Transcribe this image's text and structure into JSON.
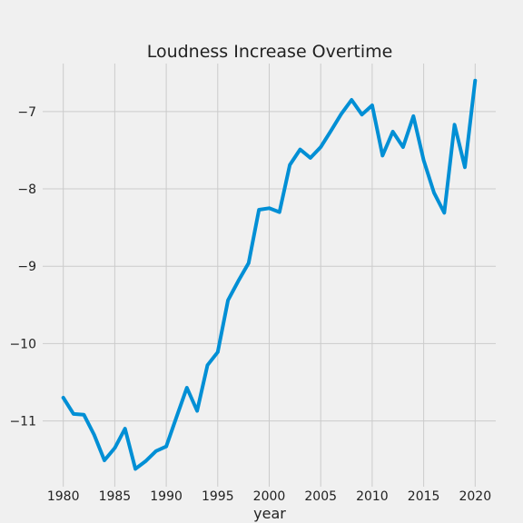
{
  "chart_data": {
    "type": "line",
    "title": "Loudness Increase Overtime",
    "xlabel": "year",
    "ylabel": "",
    "grid": true,
    "xlim": [
      1978,
      2022
    ],
    "ylim": [
      -11.85,
      -6.38
    ],
    "xticks": [
      1980,
      1985,
      1990,
      1995,
      2000,
      2005,
      2010,
      2015,
      2020
    ],
    "yticks": [
      -11,
      -10,
      -9,
      -8,
      -7
    ],
    "ytick_labels": [
      "−11",
      "−10",
      "−9",
      "−8",
      "−7"
    ],
    "colors": {
      "line": "#008fd5",
      "background": "#f0f0f0",
      "grid": "#cbcbcb"
    },
    "series": [
      {
        "x": [
          1980,
          1981,
          1982,
          1983,
          1984,
          1985,
          1986,
          1987,
          1988,
          1989,
          1990,
          1991,
          1992,
          1993,
          1994,
          1995,
          1996,
          1997,
          1998,
          1999,
          2000,
          2001,
          2002,
          2003,
          2004,
          2005,
          2006,
          2007,
          2008,
          2009,
          2010,
          2011,
          2012,
          2013,
          2014,
          2015,
          2016,
          2017,
          2018,
          2019,
          2020
        ],
        "y": [
          -10.7,
          -10.91,
          -10.92,
          -11.18,
          -11.51,
          -11.35,
          -11.1,
          -11.62,
          -11.52,
          -11.39,
          -11.33,
          -10.95,
          -10.57,
          -10.87,
          -10.28,
          -10.11,
          -9.44,
          -9.19,
          -8.96,
          -8.27,
          -8.25,
          -8.3,
          -7.69,
          -7.49,
          -7.6,
          -7.46,
          -7.25,
          -7.03,
          -6.85,
          -7.04,
          -6.92,
          -7.57,
          -7.26,
          -7.46,
          -7.06,
          -7.63,
          -8.05,
          -8.31,
          -7.17,
          -7.72,
          -6.6
        ]
      }
    ]
  }
}
